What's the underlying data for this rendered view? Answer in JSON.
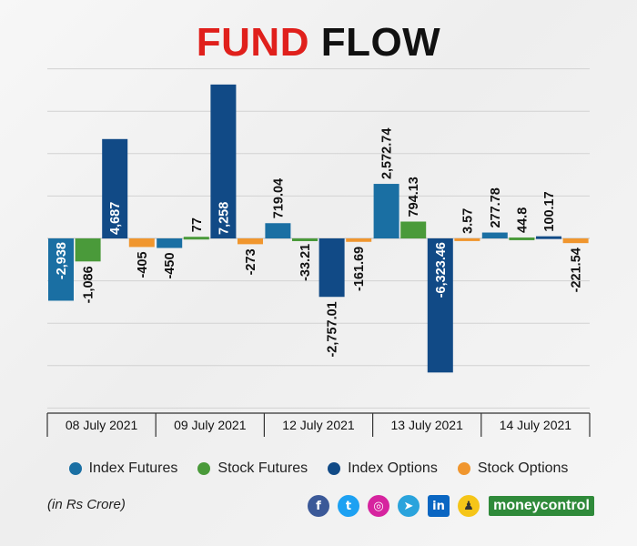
{
  "title_part1": "FUND",
  "title_part2": "FLOW",
  "unit_note": "(in Rs Crore)",
  "brand": "moneycontrol",
  "social_icons": [
    "facebook-icon",
    "twitter-icon",
    "instagram-icon",
    "telegram-icon",
    "linkedin-icon",
    "koo-icon"
  ],
  "colors": {
    "title_accent": "#e0201c",
    "Index Futures": "#1a6fa3",
    "Stock Futures": "#4a9a3a",
    "Index Options": "#114a86",
    "Stock Options": "#f0962e"
  },
  "chart_data": {
    "type": "bar",
    "categories": [
      "08 July 2021",
      "09 July 2021",
      "12 July 2021",
      "13 July 2021",
      "14 July 2021"
    ],
    "series": [
      {
        "name": "Index Futures",
        "values": [
          -2938,
          -450,
          719.04,
          2572.74,
          277.78
        ],
        "labels": [
          "-2,938",
          "-450",
          "719.04",
          "2,572.74",
          "277.78"
        ]
      },
      {
        "name": "Stock Futures",
        "values": [
          -1086,
          77,
          -33.21,
          794.13,
          44.8
        ],
        "labels": [
          "-1,086",
          "77",
          "-33.21",
          "794.13",
          "44.8"
        ]
      },
      {
        "name": "Index Options",
        "values": [
          4687,
          7258,
          -2757.01,
          -6323.46,
          100.17
        ],
        "labels": [
          "4,687",
          "7,258",
          "-2,757.01",
          "-6,323.46",
          "100.17"
        ]
      },
      {
        "name": "Stock Options",
        "values": [
          -405,
          -273,
          -161.69,
          3.57,
          -221.54
        ],
        "labels": [
          "-405",
          "-273",
          "-161.69",
          "3.57",
          "-221.54"
        ]
      }
    ],
    "ylim": [
      -8000,
      8000
    ],
    "grid": true,
    "legend_position": "bottom"
  }
}
